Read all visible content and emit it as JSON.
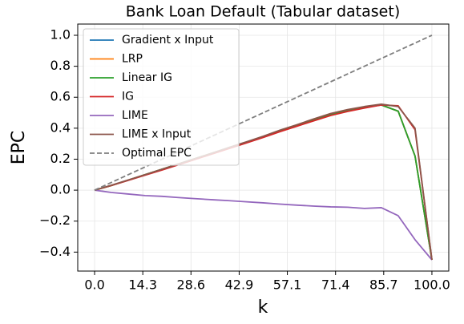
{
  "chart_data": {
    "type": "line",
    "title": "Bank Loan Default (Tabular dataset)",
    "x_label": "k",
    "y_label": "EPC",
    "x": [
      0,
      5,
      10,
      15,
      20,
      25,
      30,
      35,
      40,
      45,
      50,
      55,
      60,
      65,
      70,
      75,
      80,
      85,
      90,
      95,
      100
    ],
    "series": [
      {
        "name": "Gradient x Input",
        "color": "#1f77b4",
        "values": [
          0,
          0.03,
          0.065,
          0.1,
          0.135,
          0.17,
          0.205,
          0.24,
          0.275,
          0.31,
          0.345,
          0.385,
          0.42,
          0.455,
          0.49,
          0.515,
          0.535,
          0.55,
          0.51,
          0.22,
          -0.45
        ]
      },
      {
        "name": "LRP",
        "color": "#ff7f0e",
        "values": [
          0,
          0.03,
          0.065,
          0.1,
          0.135,
          0.17,
          0.205,
          0.24,
          0.275,
          0.31,
          0.345,
          0.385,
          0.42,
          0.455,
          0.49,
          0.515,
          0.535,
          0.55,
          0.51,
          0.22,
          -0.45
        ]
      },
      {
        "name": "Linear IG",
        "color": "#2ca02c",
        "values": [
          0,
          0.03,
          0.065,
          0.1,
          0.135,
          0.17,
          0.205,
          0.24,
          0.275,
          0.31,
          0.345,
          0.385,
          0.42,
          0.455,
          0.49,
          0.515,
          0.535,
          0.55,
          0.51,
          0.22,
          -0.45
        ]
      },
      {
        "name": "IG",
        "color": "#d62728",
        "values": [
          0,
          0.03,
          0.063,
          0.097,
          0.13,
          0.165,
          0.2,
          0.235,
          0.27,
          0.305,
          0.34,
          0.378,
          0.413,
          0.448,
          0.482,
          0.508,
          0.53,
          0.55,
          0.545,
          0.39,
          -0.45
        ]
      },
      {
        "name": "LIME",
        "color": "#9467bd",
        "values": [
          0,
          -0.015,
          -0.025,
          -0.035,
          -0.04,
          -0.048,
          -0.055,
          -0.062,
          -0.068,
          -0.075,
          -0.082,
          -0.09,
          -0.097,
          -0.103,
          -0.108,
          -0.11,
          -0.118,
          -0.113,
          -0.165,
          -0.32,
          -0.45
        ]
      },
      {
        "name": "LIME x Input",
        "color": "#8c564b",
        "values": [
          0,
          0.032,
          0.066,
          0.1,
          0.135,
          0.17,
          0.205,
          0.24,
          0.277,
          0.312,
          0.348,
          0.388,
          0.423,
          0.46,
          0.495,
          0.52,
          0.54,
          0.555,
          0.54,
          0.4,
          -0.45
        ]
      },
      {
        "name": "Optimal EPC",
        "color": "#7f7f7f",
        "dashed": true,
        "x": [
          0,
          100
        ],
        "values": [
          0,
          1
        ]
      }
    ],
    "xlim": [
      -5,
      105
    ],
    "xticks": [
      {
        "value": 0,
        "label": "0.0"
      },
      {
        "value": 14.29,
        "label": "14.3"
      },
      {
        "value": 28.57,
        "label": "28.6"
      },
      {
        "value": 42.86,
        "label": "42.9"
      },
      {
        "value": 57.14,
        "label": "57.1"
      },
      {
        "value": 71.43,
        "label": "71.4"
      },
      {
        "value": 85.71,
        "label": "85.7"
      },
      {
        "value": 100,
        "label": "100.0"
      }
    ],
    "ylim": [
      -0.5225,
      1.0725
    ],
    "yticks": [
      {
        "value": -0.4,
        "label": "−0.4"
      },
      {
        "value": -0.2,
        "label": "−0.2"
      },
      {
        "value": 0,
        "label": "0.0"
      },
      {
        "value": 0.2,
        "label": "0.2"
      },
      {
        "value": 0.4,
        "label": "0.4"
      },
      {
        "value": 0.6,
        "label": "0.6"
      },
      {
        "value": 0.8,
        "label": "0.8"
      },
      {
        "value": 1.0,
        "label": "1.0"
      }
    ],
    "grid": true,
    "legend": "upper-left"
  }
}
